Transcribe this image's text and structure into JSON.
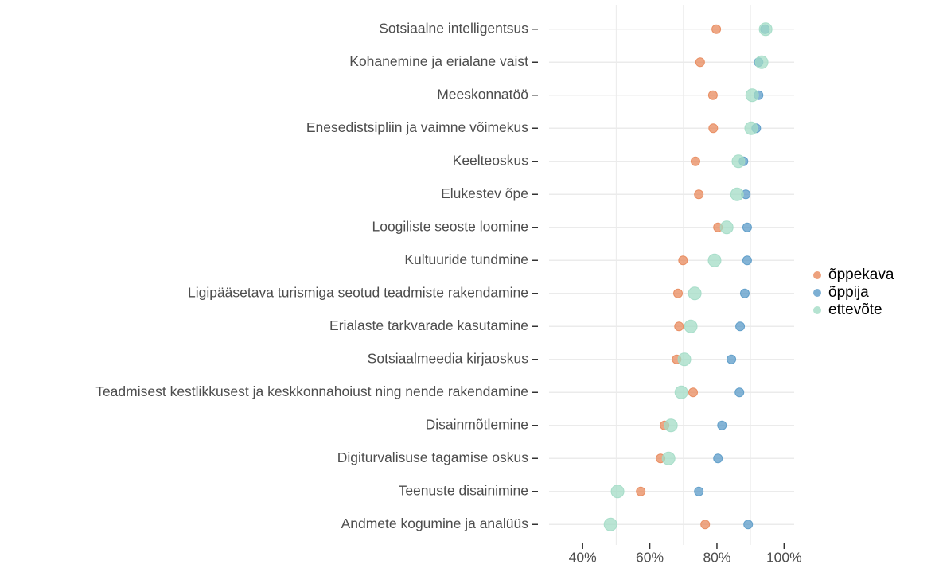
{
  "chart_data": {
    "type": "dot",
    "categories": [
      "Sotsiaalne intelligentsus",
      "Kohanemine ja erialane vaist",
      "Meeskonnatöö",
      "Enesedistsipliin ja vaimne võimekus",
      "Keelteoskus",
      "Elukestev õpe",
      "Loogiliste seoste loomine",
      "Kultuuride tundmine",
      "Ligipääsetava turismiga seotud teadmiste rakendamine",
      "Erialaste tarkvarade kasutamine",
      "Sotsiaalmeedia kirjaoskus",
      "Teadmisest kestlikkusest ja keskkonnahoiust ning nende rakendamine",
      "Disainmõtlemine",
      "Digiturvalisuse tagamise oskus",
      "Teenuste disainimine",
      "Andmete kogumine ja analüüs"
    ],
    "series": [
      {
        "name": "õppekava",
        "color": "#e8895c",
        "values": [
          79.8,
          75,
          78.8,
          78.9,
          73.6,
          74.6,
          80.3,
          69.9,
          68.4,
          68.7,
          68,
          72.9,
          64.4,
          63.2,
          57.3,
          76.5
        ]
      },
      {
        "name": "õppija",
        "color": "#5b9bc8",
        "values": [
          94.3,
          92.4,
          92.4,
          91.7,
          87.9,
          88.6,
          89,
          89,
          88.3,
          86.9,
          84.3,
          86.7,
          81.5,
          80.3,
          74.6,
          89.3
        ]
      },
      {
        "name": "ettevõte",
        "color": "#a3dcc6",
        "values": [
          94.5,
          93.3,
          90.5,
          90.2,
          86.4,
          86,
          82.9,
          79.3,
          73.4,
          72.2,
          70.3,
          69.4,
          66.3,
          65.6,
          50.4,
          48.3
        ]
      }
    ],
    "xlim": [
      30,
      103
    ],
    "xticks": [
      {
        "value": 40,
        "label": "40%"
      },
      {
        "value": 60,
        "label": "60%"
      },
      {
        "value": 80,
        "label": "80%"
      },
      {
        "value": 100,
        "label": "100%"
      }
    ],
    "xgrid_minor": [
      50,
      70,
      90
    ],
    "grid": true,
    "legend": "right"
  }
}
